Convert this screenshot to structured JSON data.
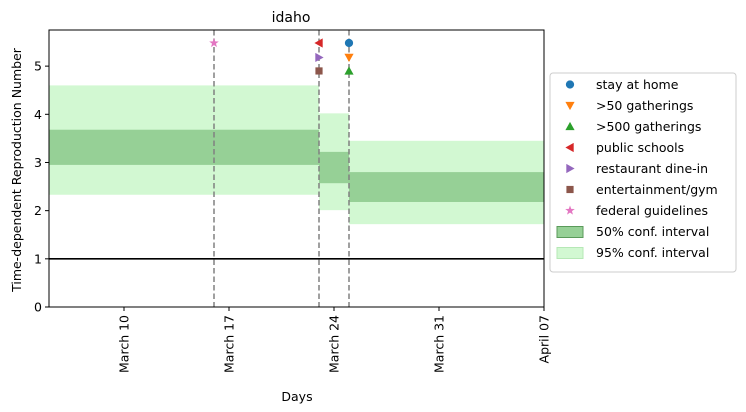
{
  "chart_data": {
    "type": "line",
    "title": "idaho",
    "xlabel": "Days",
    "ylabel": "Time-dependent Reproduction Number",
    "x_range": [
      "2020-03-05",
      "2020-04-07"
    ],
    "ylim": [
      0,
      5.75
    ],
    "y_ticks": [
      0,
      1,
      2,
      3,
      4,
      5
    ],
    "x_ticks": [
      {
        "date": "2020-03-10",
        "label": "March 10"
      },
      {
        "date": "2020-03-17",
        "label": "March 17"
      },
      {
        "date": "2020-03-24",
        "label": "March 24"
      },
      {
        "date": "2020-03-31",
        "label": "March 31"
      },
      {
        "date": "2020-04-07",
        "label": "April 07"
      }
    ],
    "grid": false,
    "legend_position": "right",
    "reference_line": {
      "y": 1,
      "color": "#000000"
    },
    "intervention_lines": [
      "2020-03-16",
      "2020-03-23",
      "2020-03-25"
    ],
    "intervals": [
      {
        "start": "2020-03-05",
        "end": "2020-03-23",
        "ci50": [
          2.95,
          3.68
        ],
        "ci95": [
          2.33,
          4.6
        ]
      },
      {
        "start": "2020-03-23",
        "end": "2020-03-25",
        "ci50": [
          2.57,
          3.22
        ],
        "ci95": [
          2.01,
          4.02
        ]
      },
      {
        "start": "2020-03-25",
        "end": "2020-04-07",
        "ci50": [
          2.18,
          2.8
        ],
        "ci95": [
          1.72,
          3.45
        ]
      }
    ],
    "markers": [
      {
        "name": "stay at home",
        "date": "2020-03-25",
        "y": 5.48,
        "shape": "circle",
        "color": "#1f77b4"
      },
      {
        "name": ">50 gatherings",
        "date": "2020-03-25",
        "y": 5.18,
        "shape": "triangle-down",
        "color": "#ff7f0e"
      },
      {
        "name": ">500 gatherings",
        "date": "2020-03-25",
        "y": 4.9,
        "shape": "triangle-up",
        "color": "#2ca02c"
      },
      {
        "name": "public schools",
        "date": "2020-03-23",
        "y": 5.48,
        "shape": "triangle-left",
        "color": "#d62728"
      },
      {
        "name": "restaurant dine-in",
        "date": "2020-03-23",
        "y": 5.18,
        "shape": "triangle-right",
        "color": "#9467bd"
      },
      {
        "name": "entertainment/gym",
        "date": "2020-03-23",
        "y": 4.9,
        "shape": "square",
        "color": "#8c564b"
      },
      {
        "name": "federal guidelines",
        "date": "2020-03-16",
        "y": 5.48,
        "shape": "star",
        "color": "#e377c2"
      }
    ],
    "legend": [
      {
        "label": "stay at home",
        "kind": "marker",
        "shape": "circle",
        "color": "#1f77b4"
      },
      {
        "label": ">50 gatherings",
        "kind": "marker",
        "shape": "triangle-down",
        "color": "#ff7f0e"
      },
      {
        "label": ">500 gatherings",
        "kind": "marker",
        "shape": "triangle-up",
        "color": "#2ca02c"
      },
      {
        "label": "public schools",
        "kind": "marker",
        "shape": "triangle-left",
        "color": "#d62728"
      },
      {
        "label": "restaurant dine-in",
        "kind": "marker",
        "shape": "triangle-right",
        "color": "#9467bd"
      },
      {
        "label": "entertainment/gym",
        "kind": "marker",
        "shape": "square",
        "color": "#8c564b"
      },
      {
        "label": "federal guidelines",
        "kind": "marker",
        "shape": "star",
        "color": "#e377c2"
      },
      {
        "label": "50% conf. interval",
        "kind": "patch",
        "color": "#96d096",
        "edge": "#5a9a5a"
      },
      {
        "label": "95% conf. interval",
        "kind": "patch",
        "color": "#d2f8d2",
        "edge": "#b6e8b6"
      }
    ],
    "colors": {
      "ci50": "#96d096",
      "ci95": "#d2f8d2",
      "vline": "#808080"
    }
  }
}
